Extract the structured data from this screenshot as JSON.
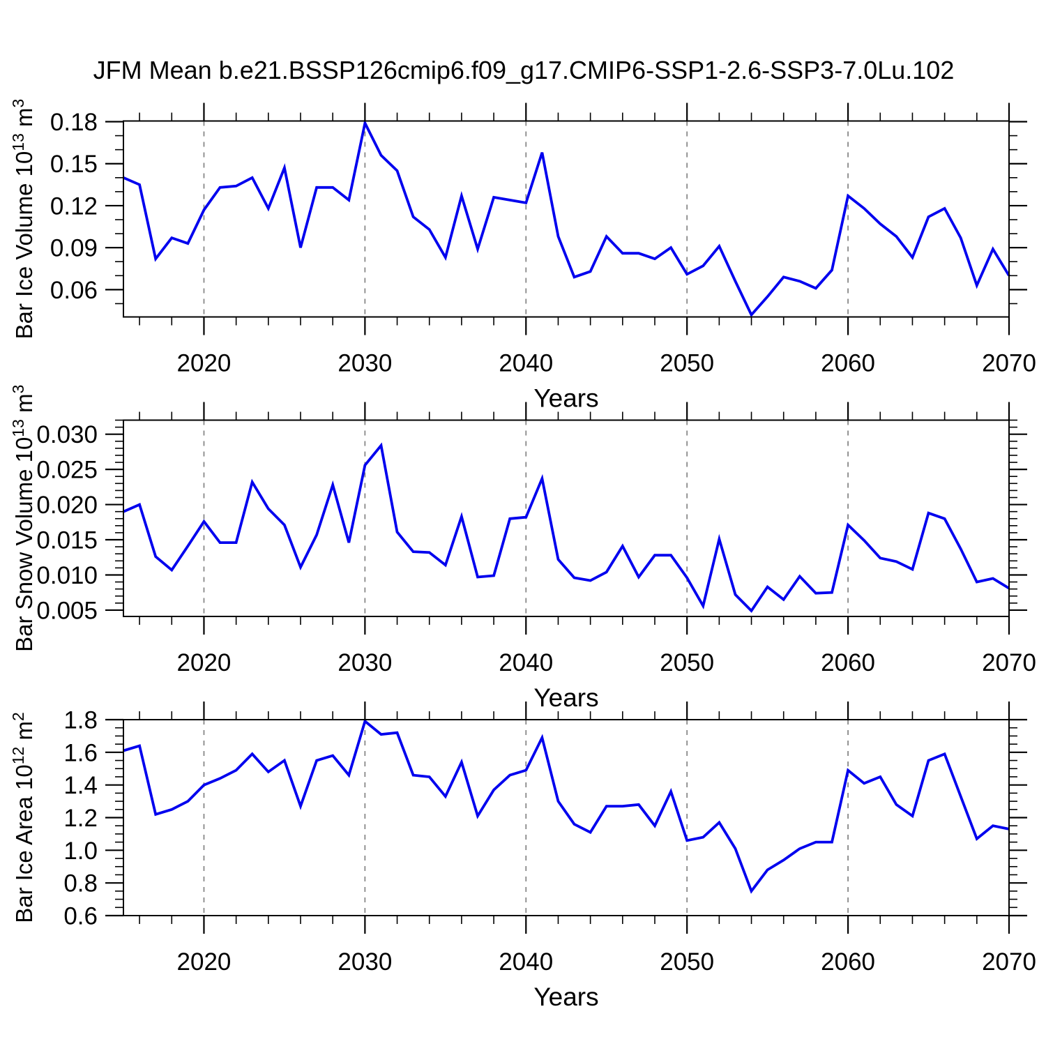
{
  "title": "JFM Mean b.e21.BSSP126cmip6.f09_g17.CMIP6-SSP1-2.6-SSP3-7.0Lu.102",
  "line_color": "#0000EE",
  "grid_color": "#888888",
  "chart_data": [
    {
      "type": "line",
      "name": "bar-ice-volume",
      "ylabel_parts": [
        {
          "text": "Bar Ice Volume 10",
          "sup": false
        },
        {
          "text": "13",
          "sup": true
        },
        {
          "text": " m",
          "sup": false
        },
        {
          "text": "3",
          "sup": true
        }
      ],
      "xlabel": "Years",
      "x_start": 2015,
      "x_end": 2070,
      "xlim": [
        2015,
        2070
      ],
      "ylim": [
        0.0405,
        0.1805
      ],
      "yticks_major": [
        0.06,
        0.09,
        0.12,
        0.15,
        0.18
      ],
      "ytick_labels": [
        "0.06",
        "0.09",
        "0.12",
        "0.15",
        "0.18"
      ],
      "yminor_step": 0.01,
      "xticks_major": [
        2020,
        2030,
        2040,
        2050,
        2060,
        2070
      ],
      "xtick_labels": [
        "2020",
        "2030",
        "2040",
        "2050",
        "2060",
        "2070"
      ],
      "xminor_step": 2,
      "grid_x": [
        2020,
        2030,
        2040,
        2050,
        2060
      ],
      "values": [
        0.14,
        0.135,
        0.082,
        0.097,
        0.093,
        0.117,
        0.133,
        0.134,
        0.14,
        0.118,
        0.147,
        0.09,
        0.133,
        0.133,
        0.124,
        0.179,
        0.156,
        0.145,
        0.112,
        0.103,
        0.083,
        0.127,
        0.089,
        0.126,
        0.124,
        0.122,
        0.158,
        0.098,
        0.069,
        0.073,
        0.098,
        0.086,
        0.086,
        0.082,
        0.09,
        0.071,
        0.077,
        0.091,
        0.066,
        0.042,
        0.055,
        0.069,
        0.066,
        0.061,
        0.074,
        0.127,
        0.118,
        0.107,
        0.098,
        0.083,
        0.112,
        0.118,
        0.097,
        0.063,
        0.089,
        0.07
      ]
    },
    {
      "type": "line",
      "name": "bar-snow-volume",
      "ylabel_parts": [
        {
          "text": "Bar Snow Volume 10",
          "sup": false
        },
        {
          "text": "13",
          "sup": true
        },
        {
          "text": " m",
          "sup": false
        },
        {
          "text": "3",
          "sup": true
        }
      ],
      "xlabel": "Years",
      "x_start": 2015,
      "x_end": 2070,
      "xlim": [
        2015,
        2070
      ],
      "ylim": [
        0.0041,
        0.032
      ],
      "yticks_major": [
        0.005,
        0.01,
        0.015,
        0.02,
        0.025,
        0.03
      ],
      "ytick_labels": [
        "0.005",
        "0.010",
        "0.015",
        "0.020",
        "0.025",
        "0.030"
      ],
      "yminor_step": 0.001,
      "xticks_major": [
        2020,
        2030,
        2040,
        2050,
        2060,
        2070
      ],
      "xtick_labels": [
        "2020",
        "2030",
        "2040",
        "2050",
        "2060",
        "2070"
      ],
      "xminor_step": 2,
      "grid_x": [
        2020,
        2030,
        2040,
        2050,
        2060
      ],
      "values": [
        0.019,
        0.02,
        0.0126,
        0.0107,
        0.0141,
        0.0176,
        0.0146,
        0.0146,
        0.0232,
        0.0194,
        0.0171,
        0.0111,
        0.0157,
        0.0228,
        0.0146,
        0.0256,
        0.0284,
        0.0161,
        0.0133,
        0.0132,
        0.0114,
        0.0183,
        0.0097,
        0.0099,
        0.018,
        0.0182,
        0.0237,
        0.0122,
        0.0096,
        0.0092,
        0.0104,
        0.0141,
        0.0097,
        0.0128,
        0.0128,
        0.0096,
        0.0056,
        0.0151,
        0.0072,
        0.0049,
        0.0083,
        0.0065,
        0.0098,
        0.0074,
        0.0075,
        0.0171,
        0.0149,
        0.0124,
        0.0119,
        0.0108,
        0.0188,
        0.018,
        0.0137,
        0.009,
        0.0095,
        0.0081
      ]
    },
    {
      "type": "line",
      "name": "bar-ice-area",
      "ylabel_parts": [
        {
          "text": "Bar Ice Area 10",
          "sup": false
        },
        {
          "text": "12",
          "sup": true
        },
        {
          "text": " m",
          "sup": false
        },
        {
          "text": "2",
          "sup": true
        }
      ],
      "xlabel": "Years",
      "x_start": 2015,
      "x_end": 2070,
      "xlim": [
        2015,
        2070
      ],
      "ylim": [
        0.6,
        1.8
      ],
      "yticks_major": [
        0.6,
        0.8,
        1.0,
        1.2,
        1.4,
        1.6,
        1.8
      ],
      "ytick_labels": [
        "0.6",
        "0.8",
        "1.0",
        "1.2",
        "1.4",
        "1.6",
        "1.8"
      ],
      "yminor_step": 0.05,
      "xticks_major": [
        2020,
        2030,
        2040,
        2050,
        2060,
        2070
      ],
      "xtick_labels": [
        "2020",
        "2030",
        "2040",
        "2050",
        "2060",
        "2070"
      ],
      "xminor_step": 2,
      "grid_x": [
        2020,
        2030,
        2040,
        2050,
        2060
      ],
      "values": [
        1.61,
        1.64,
        1.22,
        1.25,
        1.3,
        1.4,
        1.44,
        1.49,
        1.59,
        1.48,
        1.55,
        1.27,
        1.55,
        1.58,
        1.46,
        1.79,
        1.71,
        1.72,
        1.46,
        1.45,
        1.33,
        1.54,
        1.21,
        1.37,
        1.46,
        1.49,
        1.69,
        1.3,
        1.16,
        1.11,
        1.27,
        1.27,
        1.28,
        1.15,
        1.36,
        1.06,
        1.08,
        1.17,
        1.01,
        0.75,
        0.88,
        0.94,
        1.01,
        1.05,
        1.05,
        1.49,
        1.41,
        1.45,
        1.28,
        1.21,
        1.55,
        1.59,
        1.33,
        1.07,
        1.15,
        1.13
      ]
    }
  ]
}
